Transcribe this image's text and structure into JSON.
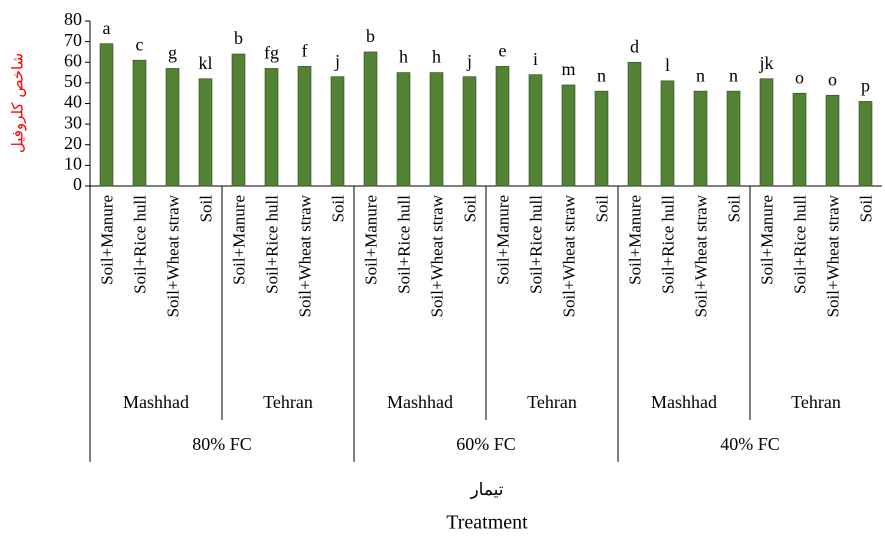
{
  "chart_data": {
    "type": "bar",
    "ylabel": "شاخص کلروفیل",
    "xlabel": "تیمار",
    "xlabel_en": "Treatment",
    "categories": [
      "Soil+Manure",
      "Soil+Rice hull",
      "Soil+Wheat straw",
      "Soil",
      "Soil+Manure",
      "Soil+Rice hull",
      "Soil+Wheat straw",
      "Soil",
      "Soil+Manure",
      "Soil+Rice hull",
      "Soil+Wheat straw",
      "Soil",
      "Soil+Manure",
      "Soil+Rice hull",
      "Soil+Wheat straw",
      "Soil",
      "Soil+Manure",
      "Soil+Rice hull",
      "Soil+Wheat straw",
      "Soil",
      "Soil+Manure",
      "Soil+Rice hull",
      "Soil+Wheat straw",
      "Soil"
    ],
    "groups": [
      "Mashhad",
      "Tehran",
      "Mashhad",
      "Tehran",
      "Mashhad",
      "Tehran"
    ],
    "supergroups": [
      "80% FC",
      "60% FC",
      "40% FC"
    ],
    "values": [
      69,
      61,
      57,
      52,
      64,
      57,
      58,
      53,
      65,
      55,
      55,
      53,
      58,
      54,
      49,
      46,
      60,
      51,
      46,
      46,
      52,
      45,
      44,
      41
    ],
    "annotations": [
      "a",
      "c",
      "g",
      "kl",
      "b",
      "fg",
      "f",
      "j",
      "b",
      "h",
      "h",
      "j",
      "e",
      "i",
      "m",
      "n",
      "d",
      "l",
      "n",
      "n",
      "jk",
      "o",
      "o",
      "p"
    ],
    "color": "#548235",
    "ylim": [
      0,
      80
    ],
    "yticks": [
      0,
      10,
      20,
      30,
      40,
      50,
      60,
      70,
      80
    ]
  }
}
